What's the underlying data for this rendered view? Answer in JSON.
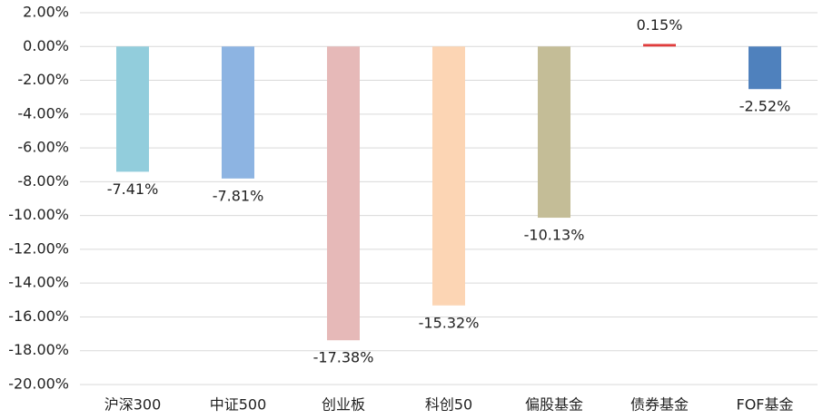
{
  "chart_data": {
    "type": "bar",
    "categories": [
      "沪深300",
      "中证500",
      "创业板",
      "科创50",
      "偏股基金",
      "债券基金",
      "FOF基金"
    ],
    "values": [
      -7.41,
      -7.81,
      -17.38,
      -15.32,
      -10.13,
      0.15,
      -2.52
    ],
    "value_labels": [
      "-7.41%",
      "-7.81%",
      "-17.38%",
      "-15.32%",
      "-10.13%",
      "0.15%",
      "-2.52%"
    ],
    "colors": [
      "#92cddc",
      "#8db4e2",
      "#e6b9b8",
      "#fcd5b4",
      "#c4bd97",
      "#e03c3c",
      "#4f81bd"
    ],
    "ylim": [
      -20,
      2
    ],
    "yticks": [
      {
        "value": 2,
        "label": "2.00%"
      },
      {
        "value": 0,
        "label": "0.00%"
      },
      {
        "value": -2,
        "label": "-2.00%"
      },
      {
        "value": -4,
        "label": "-4.00%"
      },
      {
        "value": -6,
        "label": "-6.00%"
      },
      {
        "value": -8,
        "label": "-8.00%"
      },
      {
        "value": -10,
        "label": "-10.00%"
      },
      {
        "value": -12,
        "label": "-12.00%"
      },
      {
        "value": -14,
        "label": "-14.00%"
      },
      {
        "value": -16,
        "label": "-16.00%"
      },
      {
        "value": -18,
        "label": "-18.00%"
      },
      {
        "value": -20,
        "label": "-20.00%"
      }
    ],
    "grid": true
  }
}
